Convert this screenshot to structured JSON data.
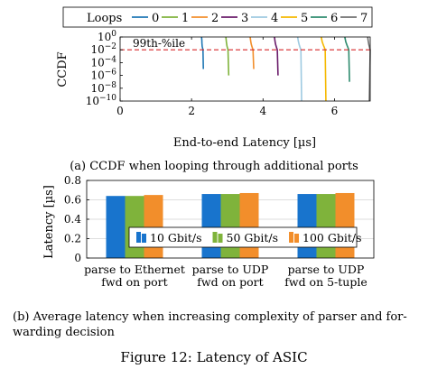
{
  "figure": {
    "caption": "Figure 12: Latency of ASIC",
    "subcaption_a": "(a) CCDF when looping through additional ports",
    "subcaption_b_line1": "(b) Average latency when increasing complexity of parser and for-",
    "subcaption_b_line2": "warding decision"
  },
  "chart_data": [
    {
      "type": "line",
      "title": "",
      "xlabel": "End-to-end Latency [µs]",
      "ylabel": "CCDF",
      "xlim": [
        0,
        7
      ],
      "ylim_log10": [
        -10,
        0
      ],
      "y_scale": "log",
      "x_ticks": [
        "0",
        "2",
        "4",
        "6"
      ],
      "y_ticks": [
        "10^0",
        "10^-2",
        "10^-4",
        "10^-6",
        "10^-8",
        "10^-10"
      ],
      "grid": false,
      "legend_title": "Loops",
      "legend_position": "top",
      "threshold": {
        "label": "99th-%ile",
        "y": 0.01,
        "color": "#d62728"
      },
      "series": [
        {
          "name": "0",
          "color": "#1f77b4",
          "x_start": 2.28,
          "x_end": 2.32,
          "x_tail": 2.33,
          "y_tail": 1e-05
        },
        {
          "name": "1",
          "color": "#7fb33b",
          "x_start": 2.96,
          "x_end": 3.02,
          "x_tail": 3.04,
          "y_tail": 1e-06
        },
        {
          "name": "2",
          "color": "#f28e2b",
          "x_start": 3.64,
          "x_end": 3.72,
          "x_tail": 3.74,
          "y_tail": 1e-05
        },
        {
          "name": "3",
          "color": "#6a1b6a",
          "x_start": 4.32,
          "x_end": 4.4,
          "x_tail": 4.42,
          "y_tail": 1e-06
        },
        {
          "name": "4",
          "color": "#9ecae1",
          "x_start": 4.97,
          "x_end": 5.06,
          "x_tail": 5.08,
          "y_tail": 1e-10
        },
        {
          "name": "5",
          "color": "#f5b800",
          "x_start": 5.63,
          "x_end": 5.74,
          "x_tail": 5.76,
          "y_tail": 1e-10
        },
        {
          "name": "6",
          "color": "#2e8b6e",
          "x_start": 6.29,
          "x_end": 6.4,
          "x_tail": 6.42,
          "y_tail": 1e-07
        },
        {
          "name": "7",
          "color": "#707070",
          "x_start": 6.93,
          "x_end": 7.0,
          "x_tail": 7.0,
          "y_tail": 1e-10
        }
      ]
    },
    {
      "type": "bar",
      "title": "",
      "xlabel": "",
      "ylabel": "Latency [µs]",
      "ylim": [
        0,
        0.8
      ],
      "y_ticks": [
        "0",
        "0.2",
        "0.4",
        "0.6",
        "0.8"
      ],
      "grid": true,
      "legend_position": "center",
      "categories": [
        [
          "parse to Ethernet",
          "fwd on port"
        ],
        [
          "parse to UDP",
          "fwd on port"
        ],
        [
          "parse to UDP",
          "fwd on 5-tuple"
        ]
      ],
      "series": [
        {
          "name": "10 Gbit/s",
          "color": "#1874cd",
          "values": [
            0.64,
            0.66,
            0.66
          ]
        },
        {
          "name": "50 Gbit/s",
          "color": "#7fb33b",
          "values": [
            0.64,
            0.66,
            0.66
          ]
        },
        {
          "name": "100 Gbit/s",
          "color": "#f28e2b",
          "values": [
            0.65,
            0.67,
            0.67
          ]
        }
      ]
    }
  ]
}
